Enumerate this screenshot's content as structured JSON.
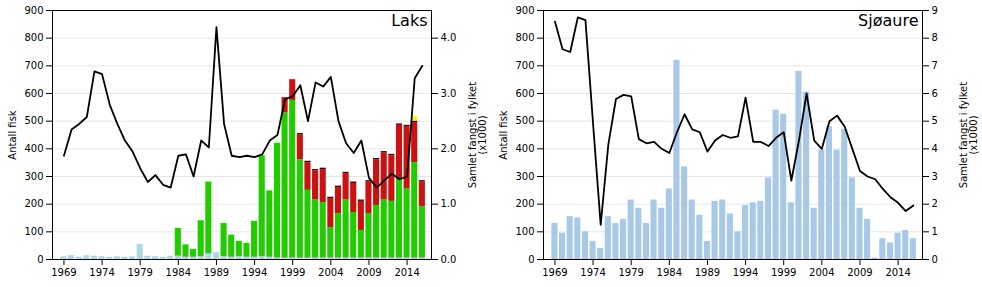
{
  "chart_data": [
    {
      "type": "bar",
      "title": "Laks",
      "stacked": true,
      "grid": true,
      "x": [
        1969,
        1970,
        1971,
        1972,
        1973,
        1974,
        1975,
        1976,
        1977,
        1978,
        1979,
        1980,
        1981,
        1982,
        1983,
        1984,
        1985,
        1986,
        1987,
        1988,
        1989,
        1990,
        1991,
        1992,
        1993,
        1994,
        1995,
        1996,
        1997,
        1998,
        1999,
        2000,
        2001,
        2002,
        2003,
        2004,
        2005,
        2006,
        2007,
        2008,
        2009,
        2010,
        2011,
        2012,
        2013,
        2014,
        2015,
        2016
      ],
      "xlim": [
        1967.5,
        2017.2
      ],
      "xticks": [
        1969,
        1974,
        1979,
        1984,
        1989,
        1994,
        1999,
        2004,
        2009,
        2014
      ],
      "ylim": [
        0,
        900
      ],
      "yticks": [
        0,
        100,
        200,
        300,
        400,
        500,
        600,
        700,
        800,
        900
      ],
      "y2lim": [
        0,
        4.5
      ],
      "y2ticks": [
        0,
        1,
        2,
        3,
        4
      ],
      "ylabel": "Antall fisk",
      "y2label": "Samlet fangst i fylket\n(x1000)",
      "series": [
        {
          "type": "bar",
          "color": "#add8e6",
          "values": [
            10,
            14,
            8,
            14,
            12,
            10,
            8,
            10,
            8,
            10,
            55,
            12,
            10,
            8,
            12,
            12,
            8,
            8,
            10,
            20,
            25,
            10,
            8,
            10,
            8,
            8,
            10,
            8,
            5,
            5,
            5,
            5,
            5,
            5,
            5,
            5,
            5,
            5,
            5,
            5,
            5,
            5,
            5,
            5,
            5,
            5,
            5,
            5
          ]
        },
        {
          "type": "bar",
          "color": "#22cc00",
          "values": [
            0,
            0,
            0,
            0,
            0,
            0,
            0,
            0,
            0,
            0,
            0,
            0,
            0,
            0,
            0,
            100,
            45,
            28,
            130,
            260,
            0,
            120,
            80,
            55,
            50,
            130,
            365,
            240,
            415,
            525,
            570,
            355,
            245,
            210,
            200,
            110,
            160,
            210,
            165,
            100,
            160,
            190,
            210,
            205,
            285,
            250,
            345,
            185
          ]
        },
        {
          "type": "bar",
          "color": "#cc1111",
          "values": [
            0,
            0,
            0,
            0,
            0,
            0,
            0,
            0,
            0,
            0,
            0,
            0,
            0,
            0,
            0,
            0,
            0,
            0,
            0,
            0,
            0,
            0,
            0,
            0,
            0,
            0,
            0,
            0,
            0,
            55,
            75,
            90,
            100,
            105,
            120,
            105,
            95,
            95,
            105,
            105,
            115,
            165,
            170,
            165,
            195,
            225,
            145,
            90
          ]
        },
        {
          "type": "bar",
          "color": "#111111",
          "values": [
            0,
            0,
            0,
            0,
            0,
            0,
            0,
            0,
            0,
            0,
            0,
            0,
            0,
            0,
            0,
            0,
            0,
            0,
            0,
            0,
            0,
            0,
            0,
            0,
            0,
            0,
            0,
            0,
            0,
            0,
            0,
            5,
            5,
            5,
            5,
            5,
            5,
            5,
            5,
            5,
            5,
            5,
            5,
            5,
            5,
            5,
            5,
            5
          ]
        },
        {
          "type": "bar",
          "color": "#ffee00",
          "values": [
            0,
            0,
            0,
            0,
            0,
            0,
            0,
            0,
            0,
            0,
            0,
            0,
            0,
            0,
            0,
            0,
            0,
            0,
            0,
            0,
            0,
            0,
            0,
            0,
            0,
            0,
            0,
            0,
            0,
            0,
            0,
            0,
            0,
            0,
            0,
            0,
            0,
            0,
            0,
            0,
            0,
            0,
            0,
            0,
            0,
            0,
            15,
            0
          ]
        },
        {
          "type": "line",
          "axis": "y2",
          "color": "#000000",
          "values": [
            1.875,
            2.35,
            2.45,
            2.575,
            3.4,
            3.35,
            2.8,
            2.45,
            2.15,
            1.95,
            1.65,
            1.4,
            1.525,
            1.35,
            1.3,
            1.875,
            1.9,
            1.5,
            2.15,
            2.025,
            4.2,
            2.45,
            1.875,
            1.85,
            1.875,
            1.85,
            1.9,
            2.15,
            2.25,
            2.9,
            2.95,
            3.15,
            2.5,
            3.2,
            3.125,
            3.3,
            2.5,
            2.1,
            1.925,
            2.15,
            1.475,
            1.3,
            1.425,
            1.55,
            1.45,
            1.5,
            3.275,
            3.5
          ]
        }
      ]
    },
    {
      "type": "bar",
      "title": "Sjøaure",
      "grid": true,
      "x": [
        1969,
        1970,
        1971,
        1972,
        1973,
        1974,
        1975,
        1976,
        1977,
        1978,
        1979,
        1980,
        1981,
        1982,
        1983,
        1984,
        1985,
        1986,
        1987,
        1988,
        1989,
        1990,
        1991,
        1992,
        1993,
        1994,
        1995,
        1996,
        1997,
        1998,
        1999,
        2000,
        2001,
        2002,
        2003,
        2004,
        2005,
        2006,
        2007,
        2008,
        2009,
        2010,
        2011,
        2012,
        2013,
        2014,
        2015,
        2016
      ],
      "xlim": [
        1967.5,
        2017.2
      ],
      "xticks": [
        1969,
        1974,
        1979,
        1984,
        1989,
        1994,
        1999,
        2004,
        2009,
        2014
      ],
      "ylim": [
        0,
        900
      ],
      "yticks": [
        0,
        100,
        200,
        300,
        400,
        500,
        600,
        700,
        800,
        900
      ],
      "y2lim": [
        0,
        9
      ],
      "y2ticks": [
        0,
        1,
        2,
        3,
        4,
        5,
        6,
        7,
        8,
        9
      ],
      "ylabel": "Antall fisk",
      "y2label": "Samlet fangst i fylket\n(x1000)",
      "series": [
        {
          "type": "bar",
          "color": "#a8c8e8",
          "values": [
            130,
            95,
            155,
            150,
            100,
            65,
            40,
            155,
            130,
            145,
            215,
            185,
            130,
            215,
            185,
            255,
            720,
            335,
            215,
            160,
            65,
            210,
            215,
            165,
            100,
            195,
            205,
            210,
            295,
            540,
            525,
            205,
            680,
            605,
            185,
            395,
            480,
            395,
            470,
            295,
            185,
            145,
            5,
            75,
            60,
            95,
            105,
            75
          ]
        },
        {
          "type": "line",
          "axis": "y2",
          "color": "#000000",
          "values": [
            8.6,
            7.6,
            7.5,
            8.75,
            8.65,
            4.9,
            1.25,
            4.15,
            5.8,
            5.95,
            5.9,
            4.35,
            4.2,
            4.25,
            4.0,
            3.85,
            4.6,
            5.25,
            4.7,
            4.6,
            3.9,
            4.3,
            4.5,
            4.4,
            4.45,
            5.85,
            4.25,
            4.25,
            4.1,
            4.4,
            4.6,
            2.85,
            4.3,
            6.0,
            4.3,
            4.0,
            5.0,
            5.2,
            4.8,
            4.0,
            3.2,
            3.0,
            2.9,
            2.55,
            2.25,
            2.05,
            1.75,
            1.95
          ]
        }
      ]
    }
  ]
}
